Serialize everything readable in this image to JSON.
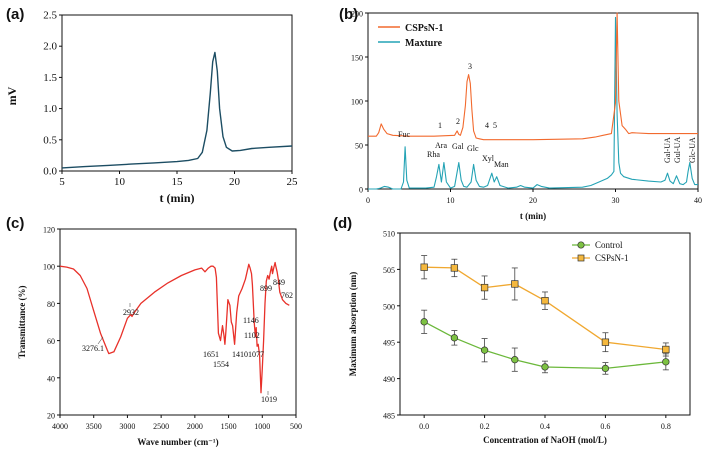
{
  "chart_data": [
    {
      "id": "a",
      "panel_label": "(a)",
      "type": "line",
      "xlabel": "t (min)",
      "ylabel": "mV",
      "xlim": [
        5,
        25
      ],
      "ylim": [
        0.0,
        2.5
      ],
      "xticks": [
        "5",
        "10",
        "15",
        "20",
        "25"
      ],
      "yticks": [
        "0.0",
        "0.5",
        "1.0",
        "1.5",
        "2.0",
        "2.5"
      ],
      "colors": {
        "line": "#1c4d63"
      },
      "series": [
        {
          "name": "signal",
          "x": [
            5,
            7,
            9,
            11,
            13,
            15,
            16,
            16.8,
            17.2,
            17.6,
            17.9,
            18.1,
            18.3,
            18.5,
            18.7,
            19.0,
            19.3,
            19.8,
            20.5,
            21.5,
            23,
            25
          ],
          "y": [
            0.05,
            0.07,
            0.09,
            0.11,
            0.13,
            0.15,
            0.17,
            0.2,
            0.3,
            0.65,
            1.25,
            1.75,
            1.9,
            1.6,
            1.0,
            0.55,
            0.38,
            0.32,
            0.33,
            0.36,
            0.38,
            0.4
          ]
        }
      ]
    },
    {
      "id": "b",
      "panel_label": "(b)",
      "type": "line",
      "xlabel": "t (min)",
      "ylabel": "",
      "xlim": [
        0,
        40
      ],
      "ylim": [
        0,
        200
      ],
      "xticks": [
        "0",
        "10",
        "20",
        "30",
        "40"
      ],
      "yticks": [
        "0",
        "50",
        "100",
        "150",
        "200"
      ],
      "colors": {
        "CSPsN-1": "#f26a2e",
        "Maxture": "#24a3b5"
      },
      "legend": [
        "CSPsN-1",
        "Maxture"
      ],
      "series": [
        {
          "name": "CSPsN-1",
          "x": [
            0,
            1,
            1.3,
            1.6,
            1.9,
            2.3,
            3,
            5,
            8,
            10.5,
            10.8,
            11.0,
            11.2,
            11.5,
            11.8,
            12.0,
            12.2,
            12.4,
            12.6,
            12.8,
            13.1,
            13.5,
            14,
            16,
            20,
            26,
            27.5,
            28.5,
            29.5,
            30.0,
            30.2,
            30.4,
            30.8,
            31.2,
            31.6,
            32,
            34,
            37,
            40
          ],
          "y": [
            60,
            60,
            64,
            74,
            68,
            63,
            61,
            60,
            60,
            61,
            66,
            62,
            61,
            70,
            95,
            122,
            130,
            120,
            90,
            66,
            58,
            57,
            56,
            56,
            56,
            57,
            59,
            61,
            63,
            98,
            200,
            100,
            72,
            68,
            63,
            64,
            63,
            63,
            63
          ]
        },
        {
          "name": "Maxture",
          "x": [
            0,
            1,
            1.5,
            2,
            2.5,
            3,
            4,
            4.3,
            4.5,
            4.7,
            5,
            7,
            8,
            8.3,
            8.6,
            8.9,
            9.2,
            9.5,
            10,
            10.5,
            11,
            11.3,
            11.6,
            12,
            12.5,
            12.8,
            13.1,
            13.5,
            14,
            14.5,
            15,
            15.3,
            15.6,
            16,
            17,
            18,
            18.5,
            19,
            20,
            20.5,
            21,
            22,
            26,
            27,
            28,
            29,
            29.5,
            29.8,
            30.0,
            30.2,
            30.4,
            30.6,
            31,
            32,
            34,
            35.5,
            36,
            36.3,
            36.6,
            37,
            37.4,
            37.8,
            38.2,
            38.6,
            38.8,
            39.0,
            39.3,
            39.6,
            40
          ],
          "y": [
            0,
            0,
            1,
            3,
            2,
            0,
            0,
            8,
            48,
            10,
            1,
            1,
            2,
            14,
            28,
            8,
            30,
            8,
            1,
            3,
            30,
            10,
            3,
            2,
            8,
            28,
            10,
            3,
            2,
            4,
            18,
            8,
            14,
            4,
            1,
            2,
            4,
            2,
            1,
            5,
            3,
            1,
            2,
            4,
            8,
            12,
            16,
            20,
            195,
            85,
            30,
            18,
            14,
            11,
            9,
            8,
            10,
            18,
            9,
            6,
            15,
            6,
            5,
            8,
            20,
            30,
            12,
            5,
            5
          ]
        }
      ],
      "annotations": {
        "peak_numbers": [
          "1",
          "2",
          "3",
          "4",
          "5"
        ],
        "monosaccharides": [
          "Fuc",
          "Rha",
          "Ara",
          "Gal",
          "Glc",
          "Xyl",
          "Man",
          "Gal-UA",
          "Gul-UA",
          "Glc-UA"
        ]
      }
    },
    {
      "id": "c",
      "panel_label": "(c)",
      "type": "line",
      "xlabel": "Wave number (cm⁻¹)",
      "ylabel": "Transmittance (%)",
      "xlim": [
        4000,
        500
      ],
      "ylim": [
        20,
        120
      ],
      "xticks": [
        "4000",
        "3500",
        "3000",
        "2500",
        "2000",
        "1500",
        "1000",
        "500"
      ],
      "yticks": [
        "20",
        "40",
        "60",
        "80",
        "100",
        "120"
      ],
      "colors": {
        "line": "#e8312a"
      },
      "series": [
        {
          "name": "IR",
          "x": [
            4000,
            3900,
            3800,
            3700,
            3600,
            3500,
            3400,
            3300,
            3276,
            3200,
            3100,
            3000,
            2950,
            2932,
            2900,
            2800,
            2600,
            2400,
            2200,
            2000,
            1900,
            1850,
            1800,
            1760,
            1730,
            1700,
            1680,
            1651,
            1620,
            1590,
            1570,
            1554,
            1540,
            1510,
            1480,
            1460,
            1440,
            1410,
            1380,
            1350,
            1300,
            1250,
            1200,
            1180,
            1160,
            1146,
            1120,
            1102,
            1090,
            1077,
            1060,
            1040,
            1019,
            1000,
            980,
            960,
            940,
            920,
            899,
            880,
            860,
            849,
            830,
            810,
            800,
            780,
            762,
            740,
            700,
            650,
            600
          ],
          "y": [
            100,
            99.5,
            98.5,
            95,
            88,
            76,
            64,
            55,
            53,
            54,
            62,
            72,
            74,
            73,
            75,
            80,
            86,
            91,
            95,
            98,
            99,
            97,
            99,
            100,
            100,
            99,
            94,
            64,
            60,
            68,
            63,
            58,
            65,
            82,
            79,
            70,
            68,
            58,
            75,
            84,
            88,
            93,
            101,
            99,
            96,
            90,
            70,
            62,
            67,
            57,
            58,
            52,
            32,
            45,
            60,
            80,
            92,
            95,
            93,
            97,
            100,
            96,
            99,
            102,
            100,
            97,
            93,
            86,
            82,
            80,
            79
          ]
        }
      ],
      "annotations": [
        "3276.1",
        "2932",
        "1651",
        "1554",
        "1410",
        "1077",
        "1146",
        "1102",
        "1019",
        "899",
        "849",
        "762"
      ]
    },
    {
      "id": "d",
      "panel_label": "(d)",
      "type": "line",
      "xlabel": "Concentration of NaOH (mol/L)",
      "ylabel": "Maximum absorption (nm)",
      "xlim": [
        -0.08,
        0.88
      ],
      "ylim": [
        485,
        510
      ],
      "xticks": [
        "0.0",
        "0.2",
        "0.4",
        "0.6",
        "0.8"
      ],
      "yticks": [
        "485",
        "490",
        "495",
        "500",
        "505",
        "510"
      ],
      "colors": {
        "Control": "#7dc242",
        "CSPsN-1": "#f5b83d",
        "Control_line": "#6bb83a",
        "CSPsN-1_line": "#f0a830"
      },
      "legend": [
        "Control",
        "CSPsN-1"
      ],
      "series": [
        {
          "name": "Control",
          "x": [
            0.0,
            0.1,
            0.2,
            0.3,
            0.4,
            0.6,
            0.8
          ],
          "y": [
            497.8,
            495.6,
            493.9,
            492.6,
            491.6,
            491.4,
            492.3
          ],
          "err": [
            1.6,
            1.0,
            1.6,
            1.6,
            0.8,
            0.8,
            1.1
          ]
        },
        {
          "name": "CSPsN-1",
          "x": [
            0.0,
            0.1,
            0.2,
            0.3,
            0.4,
            0.6,
            0.8
          ],
          "y": [
            505.3,
            505.2,
            502.5,
            503.0,
            500.7,
            495.0,
            494.0
          ],
          "err": [
            1.6,
            1.2,
            1.6,
            2.2,
            1.2,
            1.3,
            0.9
          ]
        }
      ]
    }
  ]
}
